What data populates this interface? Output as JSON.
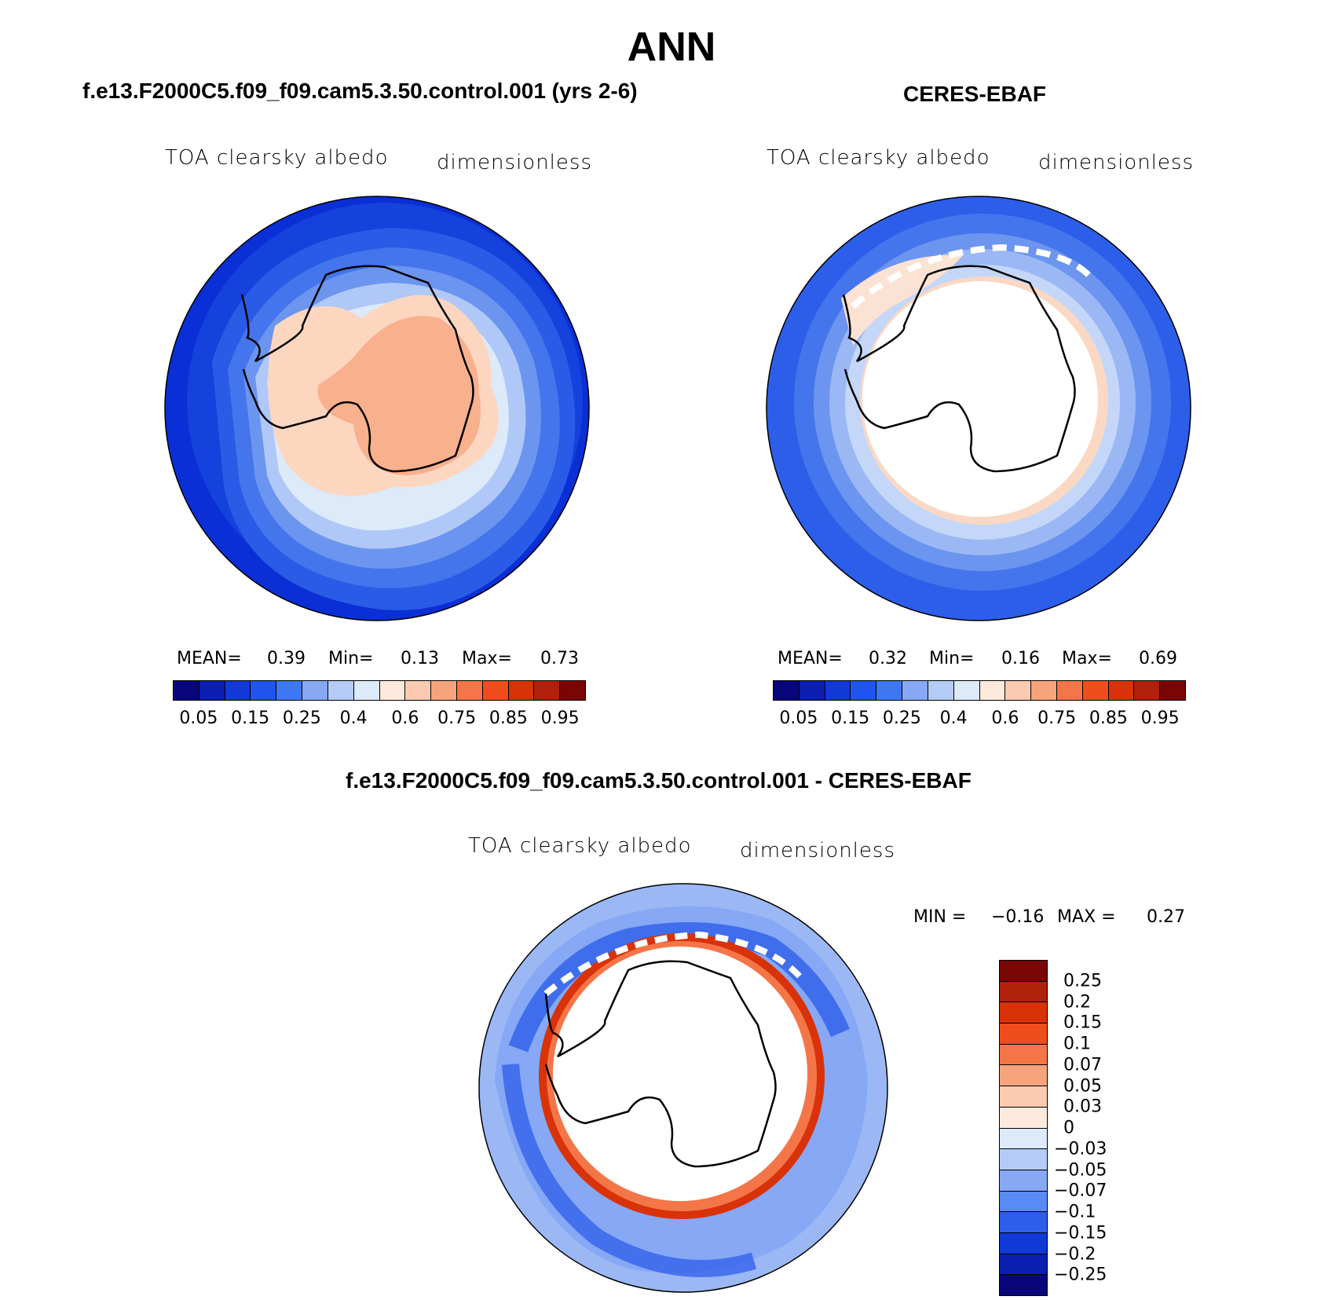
{
  "main_title": "ANN",
  "panel1": {
    "title": "f.e13.F2000C5.f09_f09.cam5.3.50.control.001 (yrs 2-6)",
    "variable": "TOA clearsky albedo",
    "units": "dimensionless",
    "mean_label": "MEAN=",
    "mean": "0.39",
    "min_label": "Min=",
    "min": "0.13",
    "max_label": "Max=",
    "max": "0.73"
  },
  "panel2": {
    "title": "CERES-EBAF",
    "variable": "TOA clearsky albedo",
    "units": "dimensionless",
    "mean_label": "MEAN=",
    "mean": "0.32",
    "min_label": "Min=",
    "min": "0.16",
    "max_label": "Max=",
    "max": "0.69"
  },
  "panel3": {
    "title": "f.e13.F2000C5.f09_f09.cam5.3.50.control.001 - CERES-EBAF",
    "variable": "TOA clearsky albedo",
    "units": "dimensionless",
    "min_label": "MIN =",
    "min": "−0.16",
    "max_label": "MAX =",
    "max": "0.27"
  },
  "colorbar_abs": {
    "colors": [
      "#08067a",
      "#0a1fb0",
      "#1139d8",
      "#1f55ee",
      "#3d78f2",
      "#86a8f5",
      "#b4cbf7",
      "#dceaf9",
      "#fdeadc",
      "#fbcab0",
      "#f7a47c",
      "#f47648",
      "#f04d1c",
      "#d93208",
      "#b1200b",
      "#7a0505"
    ],
    "tick_labels": [
      "0.05",
      "0.15",
      "0.25",
      "0.4",
      "0.6",
      "0.75",
      "0.85",
      "0.95"
    ]
  },
  "colorbar_diff": {
    "colors": [
      "#7a0505",
      "#b1200b",
      "#d93208",
      "#f04d1c",
      "#f47648",
      "#f7a47c",
      "#fbcab0",
      "#fdeadc",
      "#dceaf9",
      "#b4cbf7",
      "#86a8f5",
      "#5a8af3",
      "#2d5eea",
      "#1139d8",
      "#0a1fb0",
      "#08067a"
    ],
    "tick_labels": [
      "0.25",
      "0.2",
      "0.15",
      "0.1",
      "0.07",
      "0.05",
      "0.03",
      "0",
      "−0.03",
      "−0.05",
      "−0.07",
      "−0.1",
      "−0.15",
      "−0.2",
      "−0.25"
    ]
  },
  "chart_data": [
    {
      "type": "heatmap",
      "projection": "south polar stereographic",
      "title": "f.e13.F2000C5.f09_f09.cam5.3.50.control.001 (yrs 2-6)",
      "variable": "TOA clearsky albedo",
      "units": "dimensionless",
      "levels": [
        0.05,
        0.1,
        0.15,
        0.2,
        0.25,
        0.3,
        0.4,
        0.5,
        0.6,
        0.7,
        0.75,
        0.8,
        0.85,
        0.9,
        0.95
      ],
      "mean": 0.39,
      "min": 0.13,
      "max": 0.73
    },
    {
      "type": "heatmap",
      "projection": "south polar stereographic",
      "title": "CERES-EBAF",
      "variable": "TOA clearsky albedo",
      "units": "dimensionless",
      "levels": [
        0.05,
        0.1,
        0.15,
        0.2,
        0.25,
        0.3,
        0.4,
        0.5,
        0.6,
        0.7,
        0.75,
        0.8,
        0.85,
        0.9,
        0.95
      ],
      "mean": 0.32,
      "min": 0.16,
      "max": 0.69
    },
    {
      "type": "heatmap",
      "projection": "south polar stereographic",
      "title": "f.e13.F2000C5.f09_f09.cam5.3.50.control.001 - CERES-EBAF",
      "variable": "TOA clearsky albedo",
      "units": "dimensionless",
      "levels": [
        -0.25,
        -0.2,
        -0.15,
        -0.1,
        -0.07,
        -0.05,
        -0.03,
        0,
        0.03,
        0.05,
        0.07,
        0.1,
        0.15,
        0.2,
        0.25
      ],
      "min": -0.16,
      "max": 0.27
    }
  ]
}
